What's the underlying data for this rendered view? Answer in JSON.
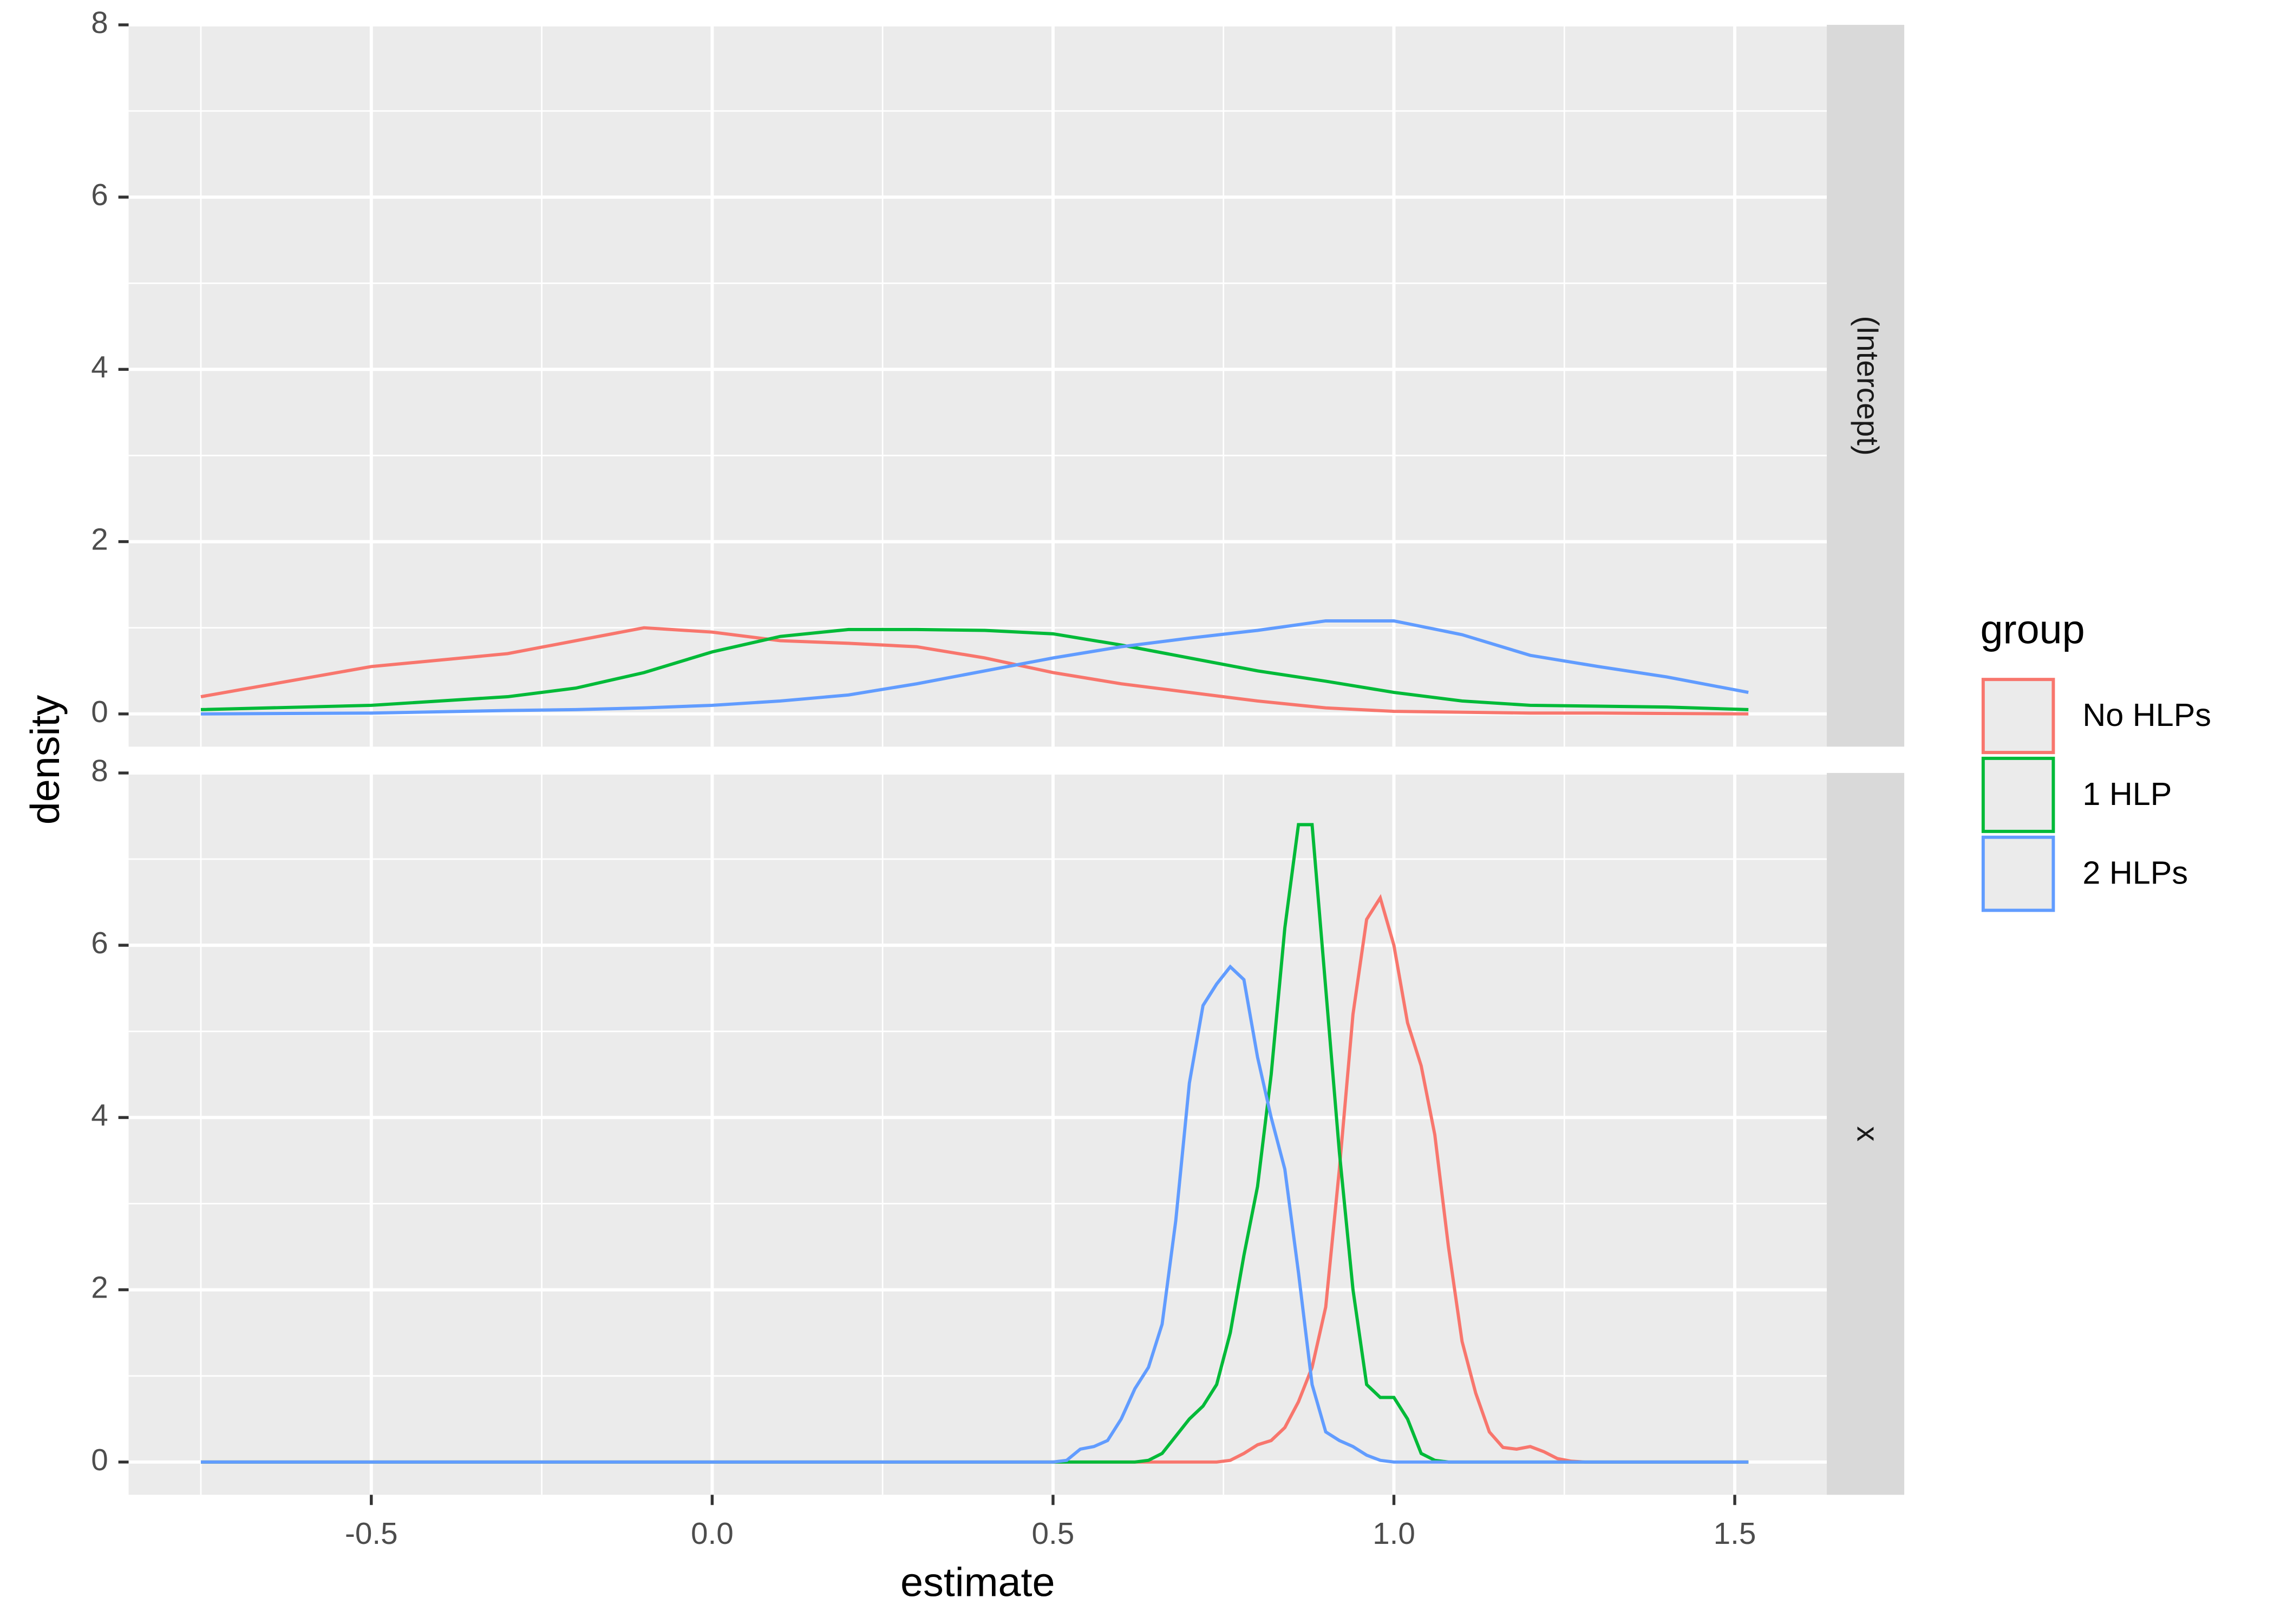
{
  "shared": {
    "x_label": "estimate",
    "y_label": "density",
    "legend_title": "group"
  },
  "chart_data": [
    {
      "type": "line",
      "panel_label": "(Intercept)",
      "xlim": [
        -0.856,
        1.635
      ],
      "ylim": [
        -0.38,
        8
      ],
      "xticks": [
        -0.5,
        0,
        0.5,
        1,
        1.5
      ],
      "yticks": [
        0,
        2,
        4,
        6,
        8
      ],
      "grid": true,
      "x": [
        -0.75,
        -0.5,
        -0.3,
        -0.2,
        -0.1,
        0,
        0.1,
        0.2,
        0.3,
        0.4,
        0.5,
        0.6,
        0.7,
        0.8,
        0.9,
        1.0,
        1.1,
        1.2,
        1.3,
        1.4,
        1.52
      ],
      "series": [
        {
          "name": "No HLPs",
          "color": "#f8766d",
          "values": [
            0.2,
            0.55,
            0.7,
            0.85,
            1.0,
            0.95,
            0.85,
            0.82,
            0.78,
            0.65,
            0.48,
            0.35,
            0.25,
            0.15,
            0.07,
            0.03,
            0.02,
            0.01,
            0.01,
            0.005,
            0.0
          ]
        },
        {
          "name": "1 HLP",
          "color": "#00ba38",
          "values": [
            0.05,
            0.1,
            0.2,
            0.3,
            0.48,
            0.72,
            0.9,
            0.98,
            0.98,
            0.97,
            0.93,
            0.8,
            0.65,
            0.5,
            0.38,
            0.25,
            0.15,
            0.1,
            0.09,
            0.08,
            0.05
          ]
        },
        {
          "name": "2 HLPs",
          "color": "#619cff",
          "values": [
            0.0,
            0.01,
            0.04,
            0.05,
            0.07,
            0.1,
            0.15,
            0.22,
            0.35,
            0.5,
            0.65,
            0.78,
            0.88,
            0.97,
            1.08,
            1.08,
            0.92,
            0.68,
            0.55,
            0.43,
            0.25
          ]
        }
      ]
    },
    {
      "type": "line",
      "panel_label": "x",
      "xlim": [
        -0.856,
        1.635
      ],
      "ylim": [
        -0.38,
        8
      ],
      "xticks": [
        -0.5,
        {
          "value": 0,
          "label": "0.0"
        },
        0.5,
        {
          "value": 1,
          "label": "1.0"
        },
        1.5
      ],
      "yticks": [
        0,
        2,
        4,
        6,
        8
      ],
      "grid": true,
      "x": [
        -0.75,
        0.5,
        0.52,
        0.54,
        0.56,
        0.58,
        0.6,
        0.62,
        0.64,
        0.66,
        0.68,
        0.7,
        0.72,
        0.74,
        0.76,
        0.78,
        0.8,
        0.82,
        0.84,
        0.86,
        0.88,
        0.9,
        0.92,
        0.94,
        0.96,
        0.98,
        1.0,
        1.02,
        1.04,
        1.06,
        1.08,
        1.1,
        1.12,
        1.14,
        1.16,
        1.18,
        1.2,
        1.22,
        1.24,
        1.26,
        1.28,
        1.3,
        1.52
      ],
      "series": [
        {
          "color": "#f8766d",
          "values": [
            0,
            0,
            0,
            0,
            0,
            0,
            0,
            0,
            0,
            0,
            0,
            0,
            0,
            0,
            0.02,
            0.1,
            0.2,
            0.25,
            0.4,
            0.7,
            1.1,
            1.8,
            3.4,
            5.2,
            6.3,
            6.55,
            6.0,
            5.1,
            4.6,
            3.8,
            2.5,
            1.4,
            0.8,
            0.35,
            0.17,
            0.15,
            0.18,
            0.12,
            0.04,
            0.01,
            0,
            0,
            0
          ]
        },
        {
          "color": "#00ba38",
          "values": [
            0,
            0,
            0,
            0,
            0,
            0,
            0,
            0,
            0.02,
            0.1,
            0.3,
            0.5,
            0.65,
            0.9,
            1.5,
            2.4,
            3.2,
            4.5,
            6.2,
            7.4,
            7.4,
            5.5,
            3.6,
            2.0,
            0.9,
            0.75,
            0.75,
            0.5,
            0.1,
            0.02,
            0,
            0,
            0,
            0,
            0,
            0,
            0,
            0,
            0,
            0,
            0,
            0,
            0
          ]
        },
        {
          "color": "#619cff",
          "values": [
            0,
            0,
            0.02,
            0.15,
            0.18,
            0.25,
            0.5,
            0.85,
            1.1,
            1.6,
            2.8,
            4.4,
            5.3,
            5.55,
            5.75,
            5.6,
            4.7,
            4.0,
            3.4,
            2.2,
            0.9,
            0.35,
            0.25,
            0.18,
            0.08,
            0.02,
            0,
            0,
            0,
            0,
            0,
            0,
            0,
            0,
            0,
            0,
            0,
            0,
            0,
            0,
            0,
            0,
            0
          ]
        }
      ]
    }
  ]
}
